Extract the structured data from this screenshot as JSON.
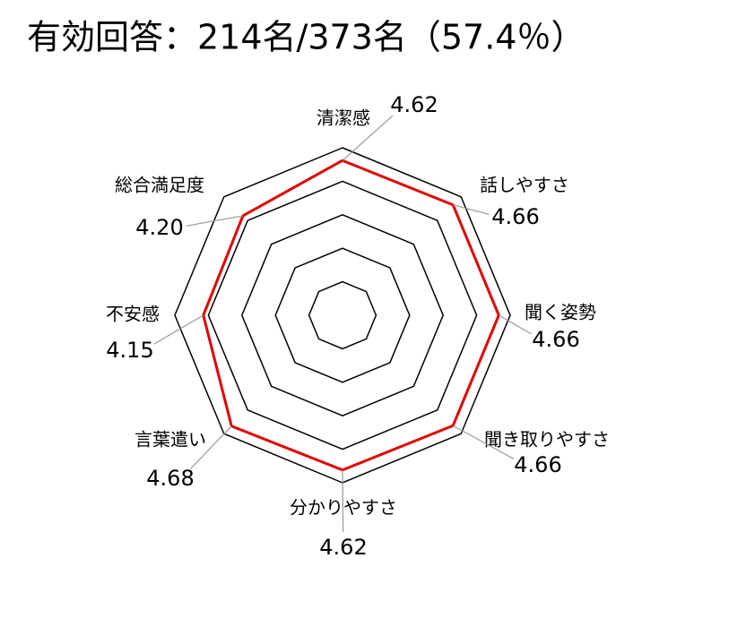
{
  "chart_data": {
    "type": "radar",
    "title": "有効回答：214名/373名（57.4％）",
    "categories": [
      "清潔感",
      "話しやすさ",
      "聞く姿勢",
      "聞き取りやすさ",
      "分かりやすさ",
      "言葉遣い",
      "不安感",
      "総合満足度"
    ],
    "values": [
      4.62,
      4.66,
      4.66,
      4.66,
      4.62,
      4.68,
      4.15,
      4.2
    ],
    "value_labels": [
      "4.62",
      "4.66",
      "4.66",
      "4.66",
      "4.62",
      "4.68",
      "4.15",
      "4.20"
    ],
    "color": "#e00000",
    "rlim": [
      0,
      5
    ],
    "rticks": [
      1,
      2,
      3,
      4,
      5
    ],
    "grid": true
  }
}
